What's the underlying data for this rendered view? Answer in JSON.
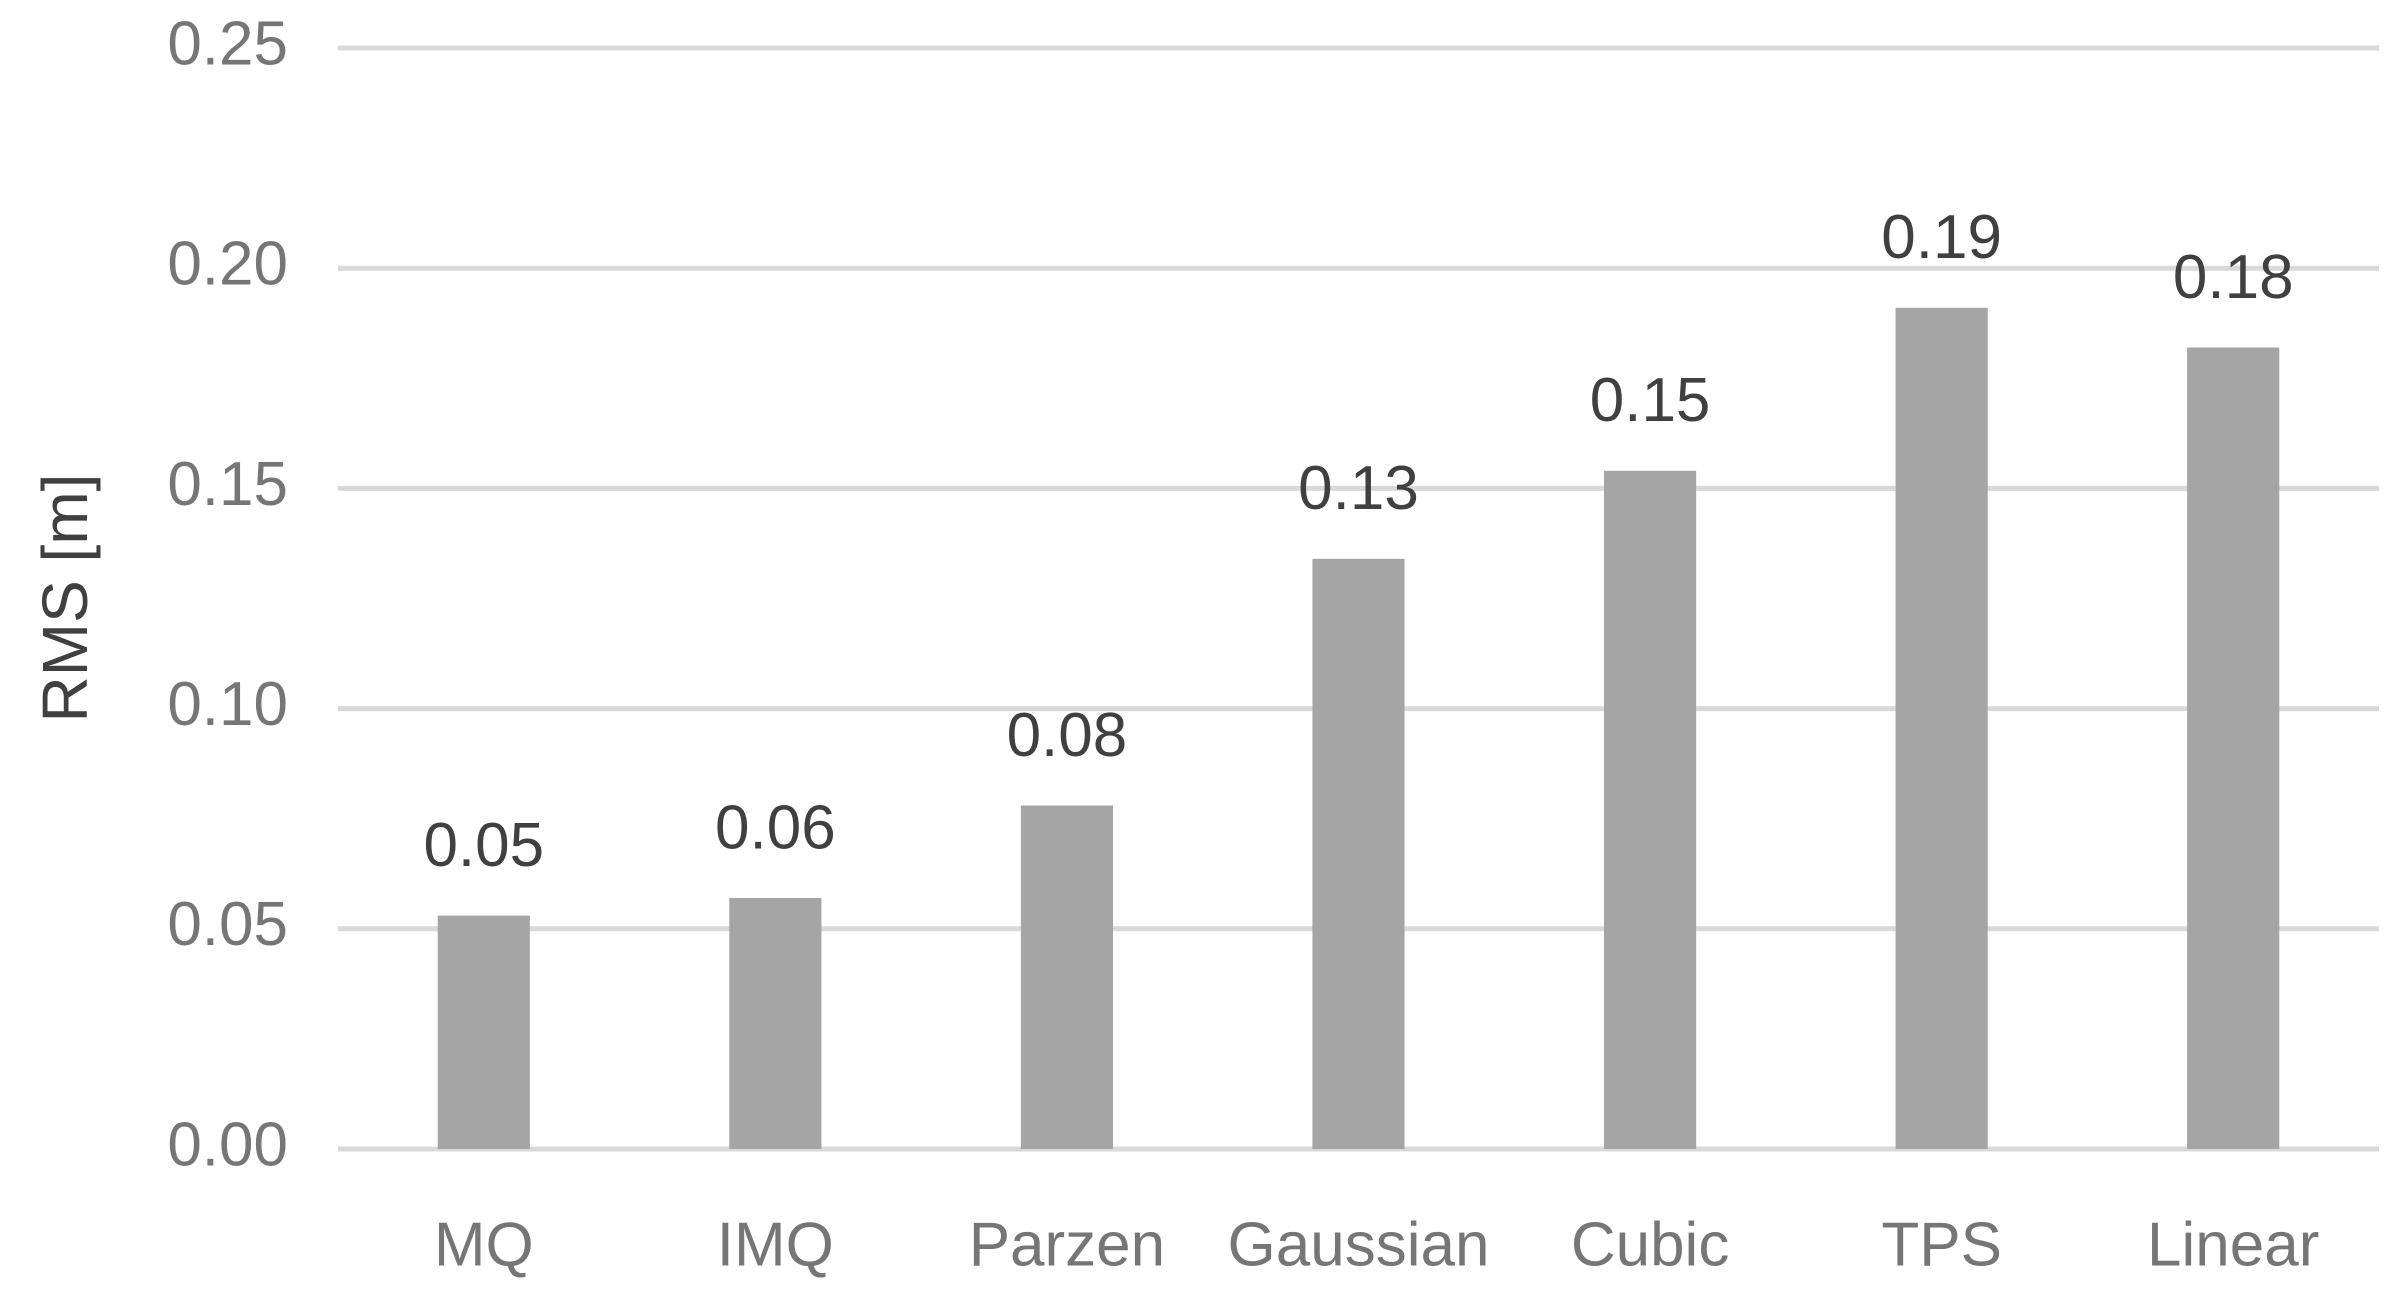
{
  "chart_data": {
    "type": "bar",
    "y_label": "RMS [m]",
    "categories": [
      "MQ",
      "IMQ",
      "Parzen",
      "Gaussian",
      "Cubic",
      "TPS",
      "Linear"
    ],
    "values": [
      0.053,
      0.057,
      0.078,
      0.134,
      0.154,
      0.191,
      0.182
    ],
    "value_labels": [
      "0.05",
      "0.06",
      "0.08",
      "0.13",
      "0.15",
      "0.19",
      "0.18"
    ],
    "color": "#a5a5a5",
    "ylim": [
      0,
      0.25
    ],
    "yticks": [
      {
        "value": 0,
        "label": "0.00"
      },
      0.05,
      {
        "value": 0.1,
        "label": "0.10"
      },
      0.15,
      {
        "value": 0.2,
        "label": "0.20"
      },
      0.25
    ],
    "grid": true
  }
}
